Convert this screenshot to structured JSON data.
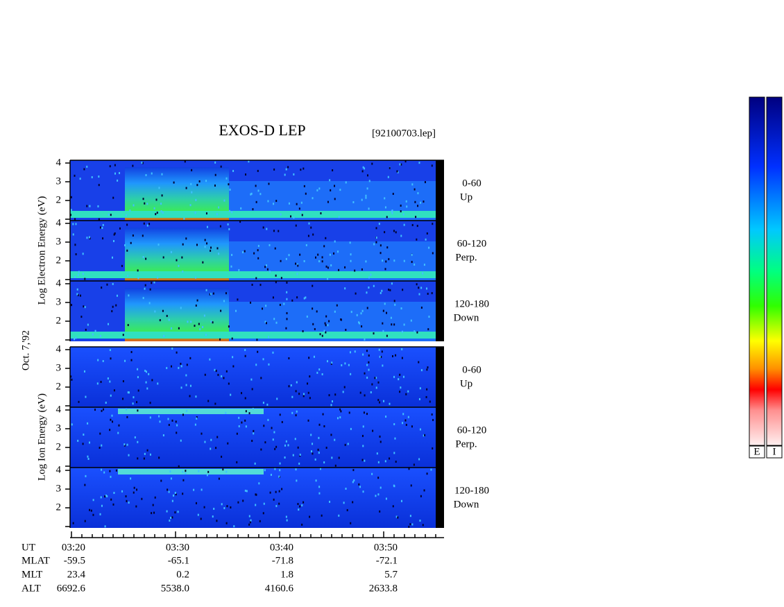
{
  "title": "EXOS-D LEP",
  "file": "[92100703.lep]",
  "date": "Oct. 7,'92",
  "groups": [
    {
      "ylabel": "Log Electron Energy (eV)",
      "yticks": [
        "4",
        "3",
        "2"
      ],
      "panels": [
        {
          "angle": "0-60",
          "dir": "Up"
        },
        {
          "angle": "60-120",
          "dir": "Perp."
        },
        {
          "angle": "120-180",
          "dir": "Down"
        }
      ]
    },
    {
      "ylabel": "Log Ion Energy (eV)",
      "yticks": [
        "4",
        "3",
        "2"
      ],
      "panels": [
        {
          "angle": "0-60",
          "dir": "Up"
        },
        {
          "angle": "60-120",
          "dir": "Perp."
        },
        {
          "angle": "120-180",
          "dir": "Down"
        }
      ]
    }
  ],
  "footer": [
    {
      "name": "UT",
      "values": [
        "03:20",
        "03:30",
        "03:40",
        "03:50"
      ]
    },
    {
      "name": "MLAT",
      "values": [
        "-59.5",
        "-65.1",
        "-71.8",
        "-72.1"
      ]
    },
    {
      "name": "MLT",
      "values": [
        "23.4",
        "0.2",
        "1.8",
        "5.7"
      ]
    },
    {
      "name": "ALT",
      "values": [
        "6692.6",
        "5538.0",
        "4160.6",
        "2633.8"
      ]
    }
  ],
  "colorbars": [
    "E",
    "I"
  ]
}
